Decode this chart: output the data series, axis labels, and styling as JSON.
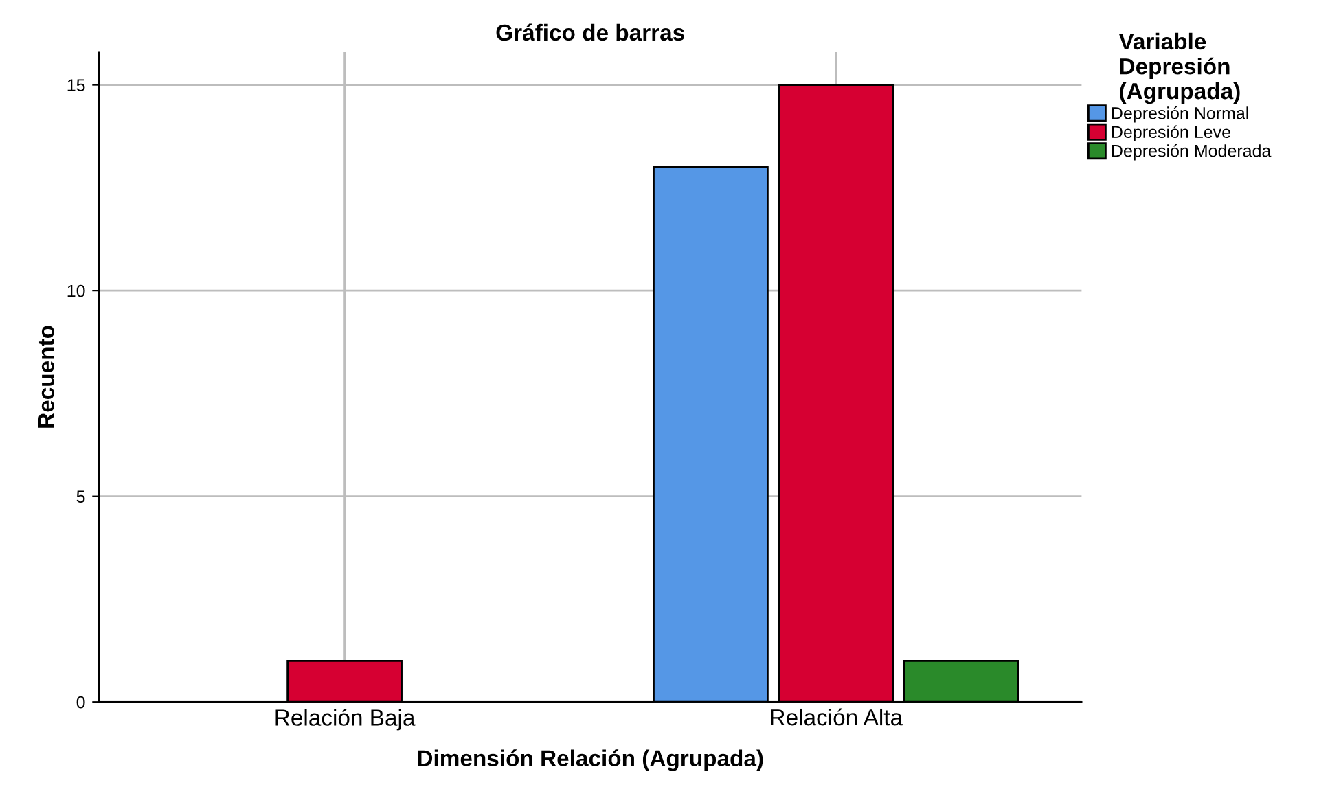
{
  "chart_data": {
    "type": "bar",
    "title": "Gráfico de barras",
    "xlabel": "Dimensión Relación (Agrupada)",
    "ylabel": "Recuento",
    "legend_title": "Variable\nDepresión\n(Agrupada)",
    "categories": [
      "Relación Baja",
      "Relación Alta"
    ],
    "series": [
      {
        "name": "Depresión Normal",
        "color": "#5597e6",
        "values": [
          null,
          13
        ]
      },
      {
        "name": "Depresión Leve",
        "color": "#d60032",
        "values": [
          1,
          15
        ]
      },
      {
        "name": "Depresión Moderada",
        "color": "#2a8a2a",
        "values": [
          null,
          1
        ]
      }
    ],
    "ylim": [
      0,
      15.8
    ],
    "yticks": [
      0,
      5,
      10,
      15
    ],
    "grid": true,
    "legend": "top right"
  }
}
